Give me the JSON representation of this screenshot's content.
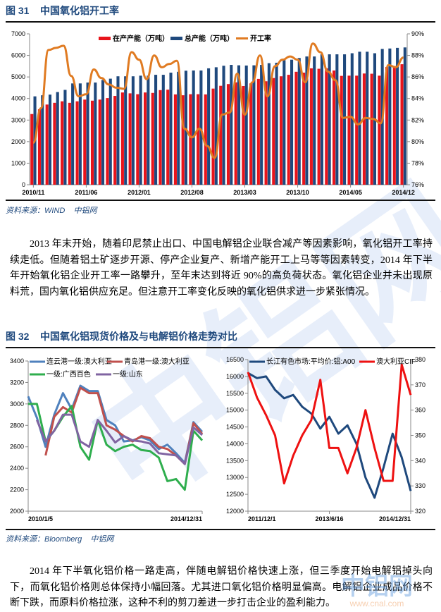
{
  "figure31": {
    "label": "图 31",
    "title": "中国氧化铝开工率",
    "source": "资料来源：WIND    中铝网"
  },
  "paragraph1": "2013 年末开始，随着印尼禁止出口、中国电解铝企业联合减产等因素影响，氧化铝开工率持续走低。但随着铝土矿逐步开源、停产企业复产、新增产能开工上马等等因素转变，2014 年下半年开始氧化铝企业开工率一路攀升，至年末达到将近 90%的高负荷状态。氧化铝企业并未出现原料荒，国内氧化铝供应充足。但注意开工率变化反映的氧化铝供求进一步紧张情况。",
  "figure32": {
    "label": "图 32",
    "title": "中国氧化铝现货价格及与电解铝价格走势对比",
    "source": "资料来源：Bloomberg    中铝网"
  },
  "paragraph2": "2014 年下半氧化铝价格一路走高，伴随电解铝价格快速上涨，但三季度开始电解铝掉头向下，而氧化铝价格则总体保持小幅回落。尤其进口氧化铝价格明显偏高。电解铝企业成品价格不断下跌，而原料价格拉涨，这种不利的剪刀差进一步打击企业的盈利能力。",
  "watermark": {
    "text": "中铝网",
    "url": "www.cnal.com"
  },
  "chart_data": [
    {
      "type": "bar+line",
      "xlabels": [
        "2010/11",
        "2011/06",
        "2012/01",
        "2012/08",
        "2013/03",
        "2013/10",
        "2014/05",
        "2014/12"
      ],
      "x_start": "2010/11",
      "x_end": "2014/12",
      "x_unit": "month",
      "ylim": [
        0,
        7000
      ],
      "yticks": [
        "0",
        "1000",
        "2000",
        "3000",
        "4000",
        "5000",
        "6000",
        "7000"
      ],
      "y2lim": [
        76,
        90
      ],
      "y2ticks": [
        "76%",
        "78%",
        "80%",
        "82%",
        "84%",
        "86%",
        "88%",
        "90%"
      ],
      "legend_position": "top",
      "colors": {
        "在产产能": "#e8141b",
        "总产能": "#1f497d",
        "开工率": "#e07b22"
      },
      "series": [
        {
          "name": "在产产能（万吨）",
          "axis": "left",
          "kind": "bar",
          "values": [
            3280,
            3500,
            3720,
            3800,
            3870,
            3800,
            3870,
            3950,
            3900,
            3950,
            4020,
            4120,
            4280,
            4240,
            4200,
            4280,
            4260,
            4390,
            4410,
            4190,
            4150,
            4200,
            4200,
            4190,
            4460,
            4590,
            4670,
            4750,
            4580,
            4700,
            4910,
            4800,
            4950,
            5030,
            5100,
            5240,
            5200,
            5400,
            5380,
            5400,
            5300,
            5050,
            5060,
            5060,
            5160,
            5150,
            5060,
            5460,
            5510,
            5590
          ]
        },
        {
          "name": "总产能（万吨）",
          "axis": "left",
          "kind": "bar",
          "values": [
            4100,
            4150,
            4180,
            4300,
            4400,
            4700,
            4700,
            4740,
            4740,
            4860,
            4920,
            5030,
            5030,
            5030,
            5060,
            5060,
            5100,
            5100,
            5200,
            5240,
            5290,
            5300,
            5300,
            5400,
            5450,
            5520,
            5560,
            5540,
            5530,
            5540,
            5560,
            5640,
            5660,
            5780,
            5800,
            5880,
            5950,
            5950,
            6050,
            6050,
            6050,
            6050,
            6100,
            6170,
            6170,
            6100,
            6300,
            6320,
            6350,
            6370
          ]
        },
        {
          "name": "开工率",
          "axis": "right",
          "kind": "line",
          "values": [
            79.9,
            83.1,
            88.5,
            88.7,
            88.9,
            86.1,
            84.2,
            84.4,
            86.7,
            85.9,
            85.3,
            85.0,
            84.9,
            88.3,
            87.6,
            85.8,
            88.0,
            86.9,
            87.2,
            87.5,
            81.2,
            80.4,
            81.2,
            79.6,
            78.5,
            82.5,
            82.7,
            86.3,
            82.5,
            85.5,
            88.0,
            84.2,
            87.0,
            87.6,
            87.9,
            87.6,
            85.5,
            89.1,
            88.3,
            86.5,
            85.7,
            82.2,
            82.3,
            81.6,
            82.2,
            82.1,
            81.7,
            87.1,
            86.9,
            87.8
          ]
        }
      ]
    },
    {
      "type": "line",
      "xlabels": [
        "2010/1/5",
        "2014/12/31"
      ],
      "x": [
        "2010-01",
        "2010-04",
        "2010-07",
        "2010-10",
        "2011-01",
        "2011-04",
        "2011-07",
        "2011-10",
        "2012-01",
        "2012-04",
        "2012-07",
        "2012-10",
        "2013-01",
        "2013-04",
        "2013-07",
        "2013-10",
        "2014-01",
        "2014-04",
        "2014-07",
        "2014-10",
        "2014-12"
      ],
      "ylim": [
        2000,
        3400
      ],
      "yticks": [
        "2000",
        "2200",
        "2400",
        "2600",
        "2800",
        "3000",
        "3200",
        "3400"
      ],
      "legend_position": "top",
      "series": [
        {
          "name": "连云港一级:澳大利亚",
          "color": "#4f81bd",
          "values": [
            3070,
            2870,
            2600,
            2900,
            3100,
            2950,
            3170,
            3120,
            3120,
            2850,
            2800,
            2650,
            2660,
            2690,
            2660,
            2580,
            2620,
            2540,
            2450,
            2830,
            2740
          ]
        },
        {
          "name": "青岛港一级:澳大利亚",
          "color": "#c0504d",
          "values": [
            null,
            null,
            2520,
            2880,
            2970,
            2920,
            3150,
            3100,
            3100,
            2800,
            2760,
            2700,
            2650,
            2700,
            2680,
            2600,
            2580,
            2520,
            2440,
            2820,
            2720
          ]
        },
        {
          "name": "一级:广西百色",
          "color": "#2fae4e",
          "values": [
            3000,
            3000,
            2650,
            2750,
            2880,
            2980,
            2600,
            2480,
            2850,
            2620,
            2560,
            2600,
            2620,
            2570,
            2560,
            2500,
            2280,
            2300,
            2200,
            2750,
            2660
          ]
        },
        {
          "name": "一级:山东",
          "color": "#8064a2",
          "values": [
            null,
            2850,
            2650,
            2750,
            2900,
            2900,
            2650,
            2600,
            2850,
            2750,
            2640,
            2700,
            2660,
            2650,
            2630,
            2540,
            2530,
            2520,
            2440,
            2780,
            2710
          ]
        }
      ]
    },
    {
      "type": "line",
      "xlabels": [
        "2011/12/1",
        "2013/6/16",
        "2014/12/31"
      ],
      "x": [
        "2011-12",
        "2012-02",
        "2012-04",
        "2012-06",
        "2012-08",
        "2012-10",
        "2012-12",
        "2013-02",
        "2013-04",
        "2013-06",
        "2013-08",
        "2013-10",
        "2013-12",
        "2014-02",
        "2014-04",
        "2014-06",
        "2014-08",
        "2014-10",
        "2014-12"
      ],
      "ylim": [
        12000,
        16500
      ],
      "yticks": [
        "12000",
        "12500",
        "13000",
        "13500",
        "14000",
        "14500",
        "15000",
        "15500",
        "16000",
        "16500"
      ],
      "y2lim": [
        320,
        380
      ],
      "y2ticks": [
        "320",
        "330",
        "340",
        "350",
        "360",
        "370",
        "380"
      ],
      "legend_position": "top",
      "series": [
        {
          "name": "长江有色市场:平均价:铝:A00",
          "axis": "left",
          "color": "#1f497d",
          "values": [
            16100,
            15950,
            16000,
            15600,
            15350,
            15450,
            15100,
            14900,
            14450,
            14800,
            14300,
            14550,
            14000,
            13000,
            12400,
            13300,
            14300,
            13600,
            12600
          ]
        },
        {
          "name": "澳大利亚CIF",
          "axis": "right",
          "color": "#ee1111",
          "values": [
            375,
            365,
            358,
            350,
            331,
            342,
            350,
            356,
            372,
            345,
            345,
            335,
            345,
            360,
            345,
            332,
            332,
            378,
            366
          ]
        }
      ]
    }
  ]
}
